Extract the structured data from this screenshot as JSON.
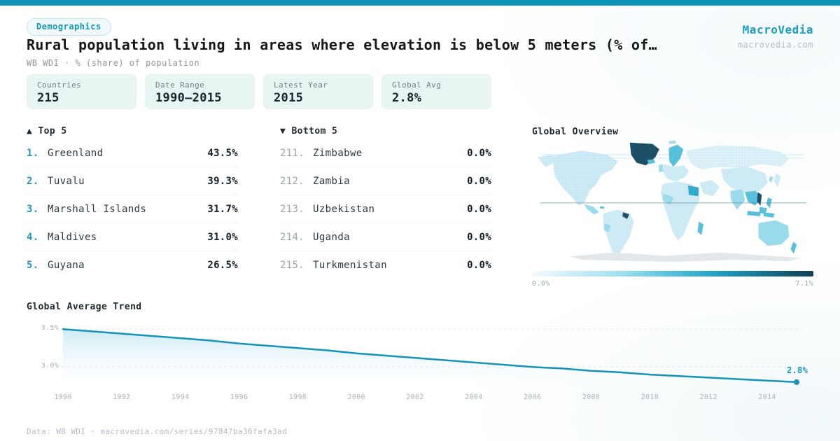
{
  "header": {
    "badge": "Demographics",
    "title": "Rural population living in areas where elevation is below 5 meters (% of…",
    "subtitle": "WB WDI · % (share) of population",
    "brand": "MacroVedia",
    "brand_url": "macrovedia.com"
  },
  "stats": {
    "cards": [
      {
        "label": "Countries",
        "value": "215"
      },
      {
        "label": "Date Range",
        "value": "1990—2015"
      },
      {
        "label": "Latest Year",
        "value": "2015"
      },
      {
        "label": "Global Avg",
        "value": "2.8%"
      }
    ]
  },
  "top5": {
    "header": "▲ Top 5",
    "items": [
      {
        "rank": "1.",
        "name": "Greenland",
        "value": "43.5%"
      },
      {
        "rank": "2.",
        "name": "Tuvalu",
        "value": "39.3%"
      },
      {
        "rank": "3.",
        "name": "Marshall Islands",
        "value": "31.7%"
      },
      {
        "rank": "4.",
        "name": "Maldives",
        "value": "31.0%"
      },
      {
        "rank": "5.",
        "name": "Guyana",
        "value": "26.5%"
      }
    ]
  },
  "bottom5": {
    "header": "▼ Bottom 5",
    "items": [
      {
        "rank": "211.",
        "name": "Zimbabwe",
        "value": "0.0%"
      },
      {
        "rank": "212.",
        "name": "Zambia",
        "value": "0.0%"
      },
      {
        "rank": "213.",
        "name": "Uzbekistan",
        "value": "0.0%"
      },
      {
        "rank": "214.",
        "name": "Uganda",
        "value": "0.0%"
      },
      {
        "rank": "215.",
        "name": "Turkmenistan",
        "value": "0.0%"
      }
    ]
  },
  "map": {
    "title": "Global Overview",
    "scale_min": "0.0%",
    "scale_max": "7.1%"
  },
  "footer": {
    "text": "Data: WB WDI · macrovedia.com/series/97847ba36fafa3ad"
  },
  "colors": {
    "accent": "#0e93b4",
    "brand": "#1b9cc0",
    "rank_highlight": "#2496c2",
    "trend_line": "#1592b8",
    "map_dark": "#1d5066",
    "card_bg": "#e8f5f3",
    "scale_low": "#f4fbfd",
    "scale_high": "#123f52"
  },
  "chart_data": [
    {
      "type": "area",
      "title": "Global Average Trend",
      "x": [
        1990,
        1991,
        1992,
        1993,
        1994,
        1995,
        1996,
        1997,
        1998,
        1999,
        2000,
        2001,
        2002,
        2003,
        2004,
        2005,
        2006,
        2007,
        2008,
        2009,
        2010,
        2011,
        2012,
        2013,
        2014,
        2015
      ],
      "values": [
        3.5,
        3.47,
        3.44,
        3.41,
        3.38,
        3.35,
        3.31,
        3.28,
        3.25,
        3.22,
        3.18,
        3.15,
        3.12,
        3.09,
        3.06,
        3.03,
        3.0,
        2.98,
        2.95,
        2.93,
        2.9,
        2.88,
        2.86,
        2.84,
        2.82,
        2.8
      ],
      "xlabel": "",
      "ylabel": "",
      "xlim": [
        1990,
        2015
      ],
      "ylim": [
        2.67,
        3.64
      ],
      "yticks": [
        3.5,
        3.0
      ],
      "ytick_labels": [
        "3.5%",
        "3.0%"
      ],
      "xticks": [
        1990,
        1992,
        1994,
        1996,
        1998,
        2000,
        2002,
        2004,
        2006,
        2008,
        2010,
        2012,
        2014
      ],
      "end_label": "2.8%",
      "grid": "horizontal-dashed",
      "legend": "none",
      "line_color": "#1592b8",
      "fill": "light-blue-fade"
    },
    {
      "type": "heatmap",
      "subtype": "world-choropleth",
      "title": "Global Overview",
      "scale": {
        "min": 0.0,
        "max": 7.1,
        "min_label": "0.0%",
        "max_label": "7.1%",
        "colors": [
          "#f4fbfd",
          "#123f52"
        ]
      },
      "known_values": {
        "Greenland": 43.5,
        "Tuvalu": 39.3,
        "Marshall Islands": 31.7,
        "Maldives": 31.0,
        "Guyana": 26.5,
        "Zimbabwe": 0.0,
        "Zambia": 0.0,
        "Uzbekistan": 0.0,
        "Uganda": 0.0,
        "Turkmenistan": 0.0
      }
    }
  ]
}
